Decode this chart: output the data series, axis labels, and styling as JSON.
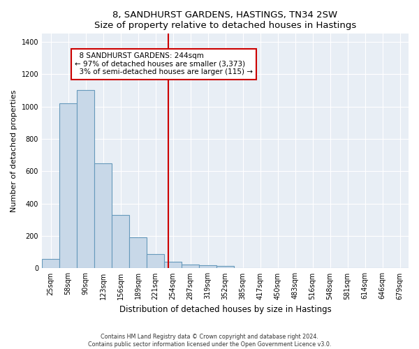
{
  "title": "8, SANDHURST GARDENS, HASTINGS, TN34 2SW",
  "subtitle": "Size of property relative to detached houses in Hastings",
  "xlabel": "Distribution of detached houses by size in Hastings",
  "ylabel": "Number of detached properties",
  "bin_labels": [
    "25sqm",
    "58sqm",
    "90sqm",
    "123sqm",
    "156sqm",
    "189sqm",
    "221sqm",
    "254sqm",
    "287sqm",
    "319sqm",
    "352sqm",
    "385sqm",
    "417sqm",
    "450sqm",
    "483sqm",
    "516sqm",
    "548sqm",
    "581sqm",
    "614sqm",
    "646sqm",
    "679sqm"
  ],
  "bar_heights": [
    60,
    1020,
    1100,
    650,
    330,
    190,
    90,
    40,
    25,
    20,
    15,
    0,
    0,
    0,
    0,
    0,
    0,
    0,
    0,
    0,
    0
  ],
  "bar_color": "#c8d8e8",
  "bar_edge_color": "#6699bb",
  "property_label": "8 SANDHURST GARDENS: 244sqm",
  "pct_smaller": "97% of detached houses are smaller (3,373)",
  "pct_larger": "3% of semi-detached houses are larger (115)",
  "vline_color": "#cc0000",
  "annotation_box_color": "#cc0000",
  "ylim": [
    0,
    1450
  ],
  "background_color": "#e8eef5",
  "footer_line1": "Contains HM Land Registry data © Crown copyright and database right 2024.",
  "footer_line2": "Contains public sector information licensed under the Open Government Licence v3.0."
}
